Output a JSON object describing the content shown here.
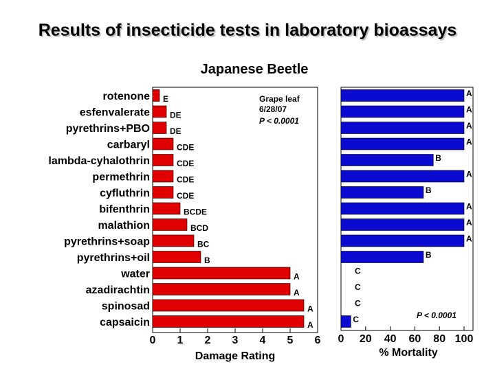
{
  "slide": {
    "title": "Results of insecticide tests in laboratory bioassays",
    "subtitle": "Japanese Beetle"
  },
  "colors": {
    "damage_bar": "#e00000",
    "mortality_bar": "#0a0ad0",
    "edge": "#000000"
  },
  "chart_data": [
    {
      "type": "bar",
      "orientation": "horizontal",
      "title": "",
      "xlabel": "Damage Rating",
      "xlim": [
        0,
        6
      ],
      "xticks": [
        0,
        1,
        2,
        3,
        4,
        5,
        6
      ],
      "categories": [
        "rotenone",
        "esfenvalerate",
        "pyrethrins+PBO",
        "carbaryl",
        "lambda-cyhalothrin",
        "permethrin",
        "cyfluthrin",
        "bifenthrin",
        "malathion",
        "pyrethrins+soap",
        "pyrethrins+oil",
        "water",
        "azadirachtin",
        "spinosad",
        "capsaicin"
      ],
      "values": [
        0.25,
        0.5,
        0.5,
        0.75,
        0.75,
        0.75,
        0.75,
        1.0,
        1.25,
        1.5,
        1.75,
        5.0,
        5.0,
        5.5,
        5.5
      ],
      "letters": [
        "E",
        "DE",
        "DE",
        "CDE",
        "CDE",
        "CDE",
        "CDE",
        "BCDE",
        "BCD",
        "BC",
        "B",
        "A",
        "A",
        "A",
        "A"
      ],
      "annotations": [
        "Grape leaf",
        "6/28/07",
        "P < 0.0001"
      ],
      "grid": false
    },
    {
      "type": "bar",
      "orientation": "horizontal",
      "title": "",
      "xlabel": "% Mortality",
      "xlim": [
        0,
        100
      ],
      "xticks": [
        0,
        20,
        40,
        60,
        80,
        100
      ],
      "values": [
        100,
        100,
        100,
        100,
        75,
        100,
        67,
        100,
        100,
        100,
        67,
        0,
        0,
        0,
        8
      ],
      "letters": [
        "A",
        "A",
        "A",
        "A",
        "B",
        "A",
        "B",
        "A",
        "A",
        "A",
        "B",
        "C",
        "C",
        "C",
        "C"
      ],
      "annotations": [
        "P < 0.0001"
      ],
      "grid": false
    }
  ]
}
